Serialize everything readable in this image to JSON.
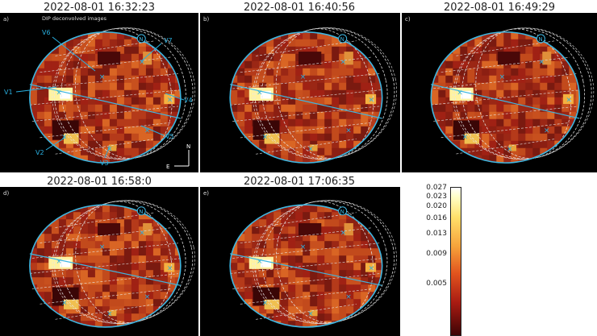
{
  "figure": {
    "panels": [
      {
        "id": "a",
        "label": "a)",
        "timestamp": "2022-08-01 16:32:23",
        "subtitle": "DIP deconvolved images"
      },
      {
        "id": "b",
        "label": "b)",
        "timestamp": "2022-08-01 16:40:56"
      },
      {
        "id": "c",
        "label": "c)",
        "timestamp": "2022-08-01 16:49:29"
      },
      {
        "id": "d",
        "label": "d)",
        "timestamp": "2022-08-01 16:58:0"
      },
      {
        "id": "e",
        "label": "e)",
        "timestamp": "2022-08-01 17:06:35"
      }
    ],
    "markers": {
      "north": "N",
      "compass_n": "N",
      "compass_e": "E",
      "volcanoes": [
        "V1",
        "V2",
        "V3",
        "V4",
        "V5",
        "V6",
        "V7"
      ]
    },
    "colorbar": {
      "ticks": [
        "0.027",
        "0.023",
        "0.020",
        "0.016",
        "0.013",
        "0.009",
        "0.005"
      ]
    },
    "colors": {
      "limb": "#3fb6e0",
      "grid": "#e8e8e8",
      "marker": "#29b0e0"
    }
  }
}
